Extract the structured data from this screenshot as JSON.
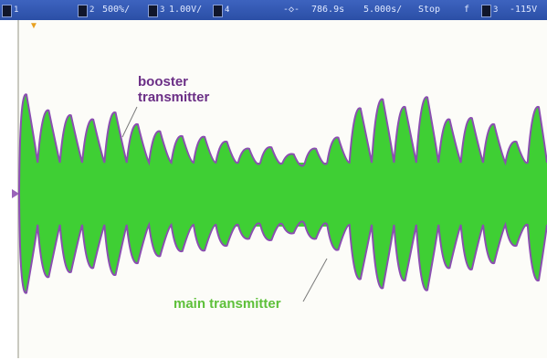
{
  "status_bar": {
    "channel_1": "1",
    "ch2_label": "2",
    "ch2_scale": "500%/",
    "ch3_label": "3",
    "ch3_scale": "1.00V/",
    "ch4_label": "4",
    "trigger_position_symbol": "-◇-",
    "time_offset": "786.9s",
    "timebase": "5.000s/",
    "run_state": "Stop",
    "trigger_slope_symbol": "f",
    "trigger_channel": "3",
    "trigger_level": "-115V"
  },
  "annotations": {
    "booster_line1": "booster",
    "booster_line2": "transmitter",
    "main": "main transmitter"
  },
  "colors": {
    "status_bar": "#2f55ad",
    "waveform_fill": "#3fcf34",
    "waveform_edge": "#8a4fb0",
    "booster_text": "#6b2f86",
    "main_text": "#5ec03a",
    "screen_background": "#fcfcf8",
    "zero_line": "#e4b23a"
  },
  "waveform": {
    "envelope_peaks": [
      0.98,
      0.75,
      0.68,
      0.62,
      0.72,
      0.55,
      0.45,
      0.38,
      0.37,
      0.3,
      0.2,
      0.22,
      0.12,
      0.2,
      0.36,
      0.78,
      0.91,
      0.8,
      0.94,
      0.62,
      0.64,
      0.55,
      0.3,
      0.8
    ]
  }
}
